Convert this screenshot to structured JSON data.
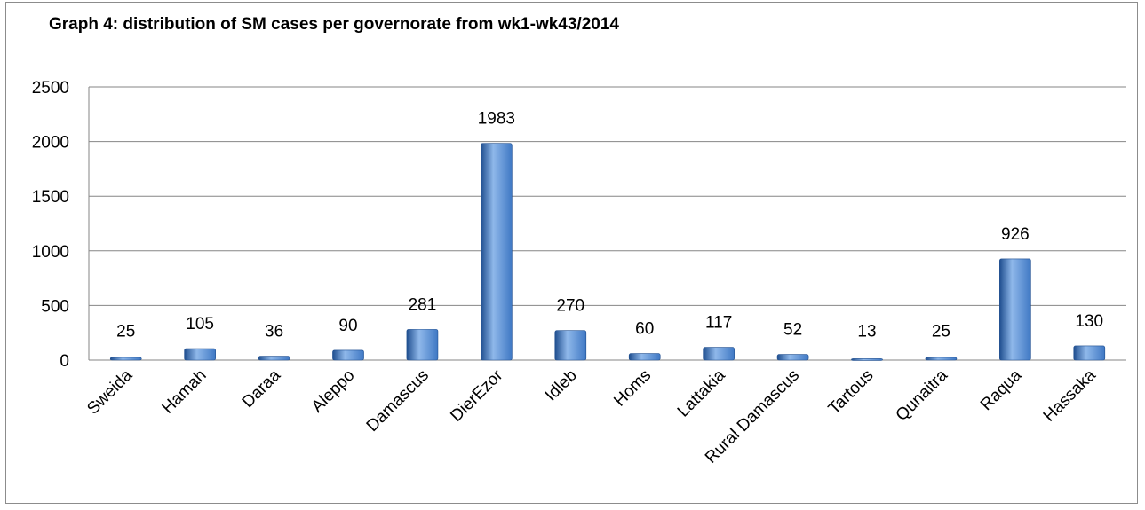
{
  "chart_data": {
    "type": "bar",
    "title": "Graph 4: distribution of SM cases per governorate from wk1-wk43/2014",
    "categories": [
      "Sweida",
      "Hamah",
      "Daraa",
      "Aleppo",
      "Damascus",
      "DierEzor",
      "Idleb",
      "Homs",
      "Lattakia",
      "Rural Damascus",
      "Tartous",
      "Qunaitra",
      "Raqua",
      "Hassaka"
    ],
    "values": [
      25,
      105,
      36,
      90,
      281,
      1983,
      270,
      60,
      117,
      52,
      13,
      25,
      926,
      130
    ],
    "ylim": [
      0,
      2500
    ],
    "yticks": [
      0,
      500,
      1000,
      1500,
      2000,
      2500
    ],
    "grid": true,
    "legend": "none",
    "bar_color": "#3f78c4",
    "bar_color_dark": "#1f4e8f",
    "bar_color_light": "#8fb8ea"
  }
}
